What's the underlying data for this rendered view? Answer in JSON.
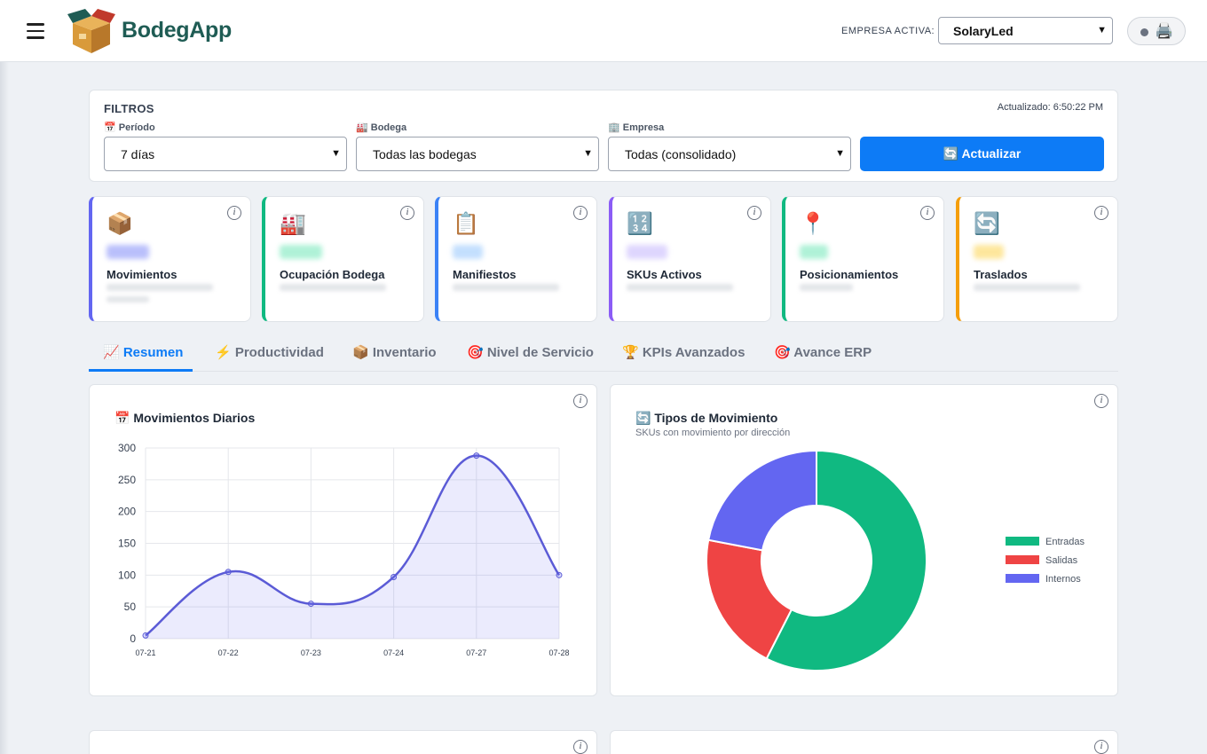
{
  "header": {
    "brand": "BodegApp",
    "empresa_label": "EMPRESA ACTIVA:",
    "empresa_value": "SolaryLed"
  },
  "filters": {
    "title": "FILTROS",
    "updated": "Actualizado: 6:50:22 PM",
    "periodo_label": "📅 Período",
    "periodo_value": "7 días",
    "bodega_label": "🏭 Bodega",
    "bodega_value": "Todas las bodegas",
    "empresa_label": "🏢 Empresa",
    "empresa_value": "Todas (consolidado)",
    "button": "🔄 Actualizar"
  },
  "kpis": [
    {
      "icon": "📦",
      "label": "Movimientos",
      "color": "#6366f1"
    },
    {
      "icon": "🏭",
      "label": "Ocupación Bodega",
      "color": "#10b981"
    },
    {
      "icon": "📋",
      "label": "Manifiestos",
      "color": "#3b82f6"
    },
    {
      "icon": "🔢",
      "label": "SKUs Activos",
      "color": "#8b5cf6"
    },
    {
      "icon": "📍",
      "label": "Posicionamientos",
      "color": "#10b981"
    },
    {
      "icon": "🔄",
      "label": "Traslados",
      "color": "#f59e0b"
    }
  ],
  "tabs": [
    {
      "label": "📈 Resumen"
    },
    {
      "label": "⚡ Productividad"
    },
    {
      "label": "📦 Inventario"
    },
    {
      "label": "🎯 Nivel de Servicio"
    },
    {
      "label": "🏆 KPIs Avanzados"
    },
    {
      "label": "🎯 Avance ERP"
    }
  ],
  "charts": {
    "daily_title": "📅 Movimientos Diarios",
    "types_title": "🔄 Tipos de Movimiento",
    "types_subtitle": "SKUs con movimiento por dirección"
  },
  "chart_data": [
    {
      "type": "line",
      "title": "📅 Movimientos Diarios",
      "x": [
        "07-21",
        "07-22",
        "07-23",
        "07-24",
        "07-27",
        "07-28"
      ],
      "series": [
        {
          "values": [
            5,
            105,
            55,
            97,
            288,
            100
          ]
        }
      ],
      "ylim": [
        0,
        300
      ],
      "yticks": [
        0,
        50,
        100,
        150,
        200,
        250,
        300
      ],
      "grid": true,
      "color": "#5b5bd6"
    },
    {
      "type": "pie",
      "title": "🔄 Tipos de Movimiento",
      "categories": [
        "Entradas",
        "Salidas",
        "Internos"
      ],
      "values": [
        57.5,
        20.5,
        22
      ],
      "colors": [
        "#10b981",
        "#ef4444",
        "#6366f1"
      ],
      "legend": "right"
    }
  ]
}
